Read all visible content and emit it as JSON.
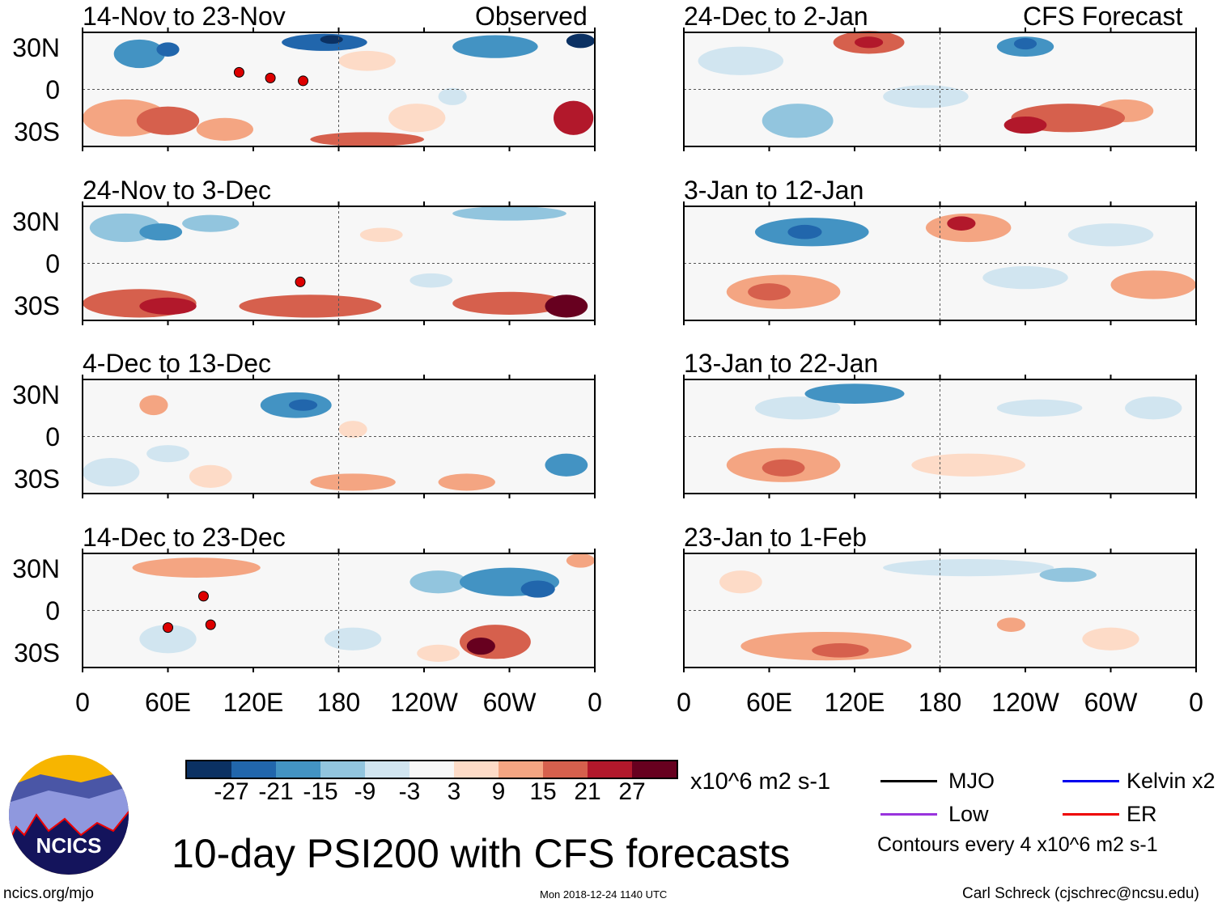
{
  "section_labels": {
    "observed": "Observed",
    "forecast": "CFS Forecast"
  },
  "panels": [
    {
      "title": "14-Nov to 23-Nov",
      "group": "observed",
      "anomalies": [
        [
          40,
          25,
          18,
          10,
          -3
        ],
        [
          60,
          28,
          8,
          5,
          -4
        ],
        [
          170,
          33,
          30,
          6,
          -4
        ],
        [
          175,
          35,
          8,
          3,
          -5
        ],
        [
          290,
          30,
          30,
          8,
          -3
        ],
        [
          350,
          34,
          10,
          5,
          -5
        ],
        [
          30,
          -20,
          30,
          13,
          2
        ],
        [
          60,
          -22,
          22,
          10,
          3
        ],
        [
          345,
          -20,
          14,
          12,
          4
        ],
        [
          100,
          -28,
          20,
          8,
          2
        ],
        [
          200,
          -35,
          40,
          5,
          3
        ],
        [
          235,
          -20,
          20,
          10,
          1
        ],
        [
          200,
          20,
          20,
          7,
          1
        ],
        [
          260,
          -5,
          10,
          6,
          -1
        ]
      ],
      "storms": [
        [
          110,
          12
        ],
        [
          132,
          8
        ],
        [
          155,
          6
        ]
      ]
    },
    {
      "title": "24-Nov to 3-Dec",
      "group": "observed",
      "anomalies": [
        [
          30,
          25,
          25,
          10,
          -2
        ],
        [
          55,
          22,
          15,
          6,
          -3
        ],
        [
          90,
          28,
          20,
          6,
          -2
        ],
        [
          300,
          35,
          40,
          5,
          -2
        ],
        [
          40,
          -28,
          40,
          10,
          3
        ],
        [
          60,
          -30,
          20,
          6,
          4
        ],
        [
          160,
          -30,
          50,
          8,
          3
        ],
        [
          300,
          -28,
          40,
          8,
          3
        ],
        [
          340,
          -30,
          15,
          8,
          5
        ],
        [
          210,
          20,
          15,
          5,
          1
        ],
        [
          245,
          -12,
          15,
          5,
          -1
        ]
      ],
      "storms": [
        [
          153,
          -13
        ]
      ]
    },
    {
      "title": "4-Dec to 13-Dec",
      "group": "observed",
      "anomalies": [
        [
          150,
          22,
          25,
          9,
          -3
        ],
        [
          155,
          22,
          10,
          4,
          -4
        ],
        [
          50,
          22,
          10,
          7,
          2
        ],
        [
          340,
          -20,
          15,
          8,
          -3
        ],
        [
          20,
          -25,
          20,
          10,
          -1
        ],
        [
          190,
          5,
          10,
          6,
          1
        ],
        [
          190,
          -32,
          30,
          6,
          2
        ],
        [
          270,
          -32,
          20,
          6,
          2
        ],
        [
          60,
          -12,
          15,
          6,
          -1
        ],
        [
          90,
          -28,
          15,
          8,
          1
        ]
      ],
      "storms": []
    },
    {
      "title": "14-Dec to 23-Dec",
      "group": "observed",
      "anomalies": [
        [
          80,
          30,
          45,
          7,
          2
        ],
        [
          300,
          20,
          35,
          10,
          -3
        ],
        [
          320,
          15,
          12,
          6,
          -4
        ],
        [
          250,
          20,
          20,
          8,
          -2
        ],
        [
          290,
          -22,
          25,
          12,
          3
        ],
        [
          280,
          -25,
          10,
          6,
          5
        ],
        [
          60,
          -20,
          20,
          10,
          -1
        ],
        [
          190,
          -20,
          20,
          8,
          -1
        ],
        [
          350,
          35,
          10,
          5,
          2
        ],
        [
          250,
          -30,
          15,
          6,
          1
        ]
      ],
      "storms": [
        [
          85,
          10
        ],
        [
          60,
          -12
        ],
        [
          90,
          -10
        ]
      ]
    },
    {
      "title": "24-Dec to 2-Jan",
      "group": "forecast",
      "anomalies": [
        [
          130,
          33,
          25,
          8,
          3
        ],
        [
          130,
          33,
          10,
          4,
          4
        ],
        [
          240,
          30,
          20,
          7,
          -3
        ],
        [
          240,
          32,
          8,
          4,
          -4
        ],
        [
          40,
          20,
          30,
          10,
          -1
        ],
        [
          270,
          -20,
          40,
          10,
          3
        ],
        [
          240,
          -25,
          15,
          6,
          4
        ],
        [
          80,
          -22,
          25,
          12,
          -2
        ],
        [
          170,
          -5,
          30,
          8,
          -1
        ],
        [
          310,
          -15,
          20,
          8,
          2
        ]
      ],
      "storms": []
    },
    {
      "title": "3-Jan to 12-Jan",
      "group": "forecast",
      "anomalies": [
        [
          90,
          22,
          40,
          10,
          -3
        ],
        [
          85,
          22,
          12,
          5,
          -4
        ],
        [
          200,
          25,
          30,
          10,
          2
        ],
        [
          195,
          28,
          10,
          5,
          4
        ],
        [
          70,
          -20,
          40,
          12,
          2
        ],
        [
          60,
          -20,
          15,
          6,
          3
        ],
        [
          330,
          -15,
          30,
          10,
          2
        ],
        [
          300,
          20,
          30,
          8,
          -1
        ],
        [
          240,
          -10,
          30,
          8,
          -1
        ]
      ],
      "storms": []
    },
    {
      "title": "13-Jan to 22-Jan",
      "group": "forecast",
      "anomalies": [
        [
          120,
          30,
          35,
          7,
          -3
        ],
        [
          80,
          20,
          30,
          8,
          -1
        ],
        [
          70,
          -20,
          40,
          12,
          2
        ],
        [
          70,
          -22,
          15,
          6,
          3
        ],
        [
          200,
          -20,
          40,
          8,
          1
        ],
        [
          250,
          20,
          30,
          6,
          -1
        ],
        [
          330,
          20,
          20,
          8,
          -1
        ]
      ],
      "storms": []
    },
    {
      "title": "23-Jan to 1-Feb",
      "group": "forecast",
      "anomalies": [
        [
          100,
          -25,
          60,
          10,
          2
        ],
        [
          110,
          -28,
          20,
          5,
          3
        ],
        [
          230,
          -10,
          10,
          5,
          2
        ],
        [
          300,
          -20,
          20,
          8,
          1
        ],
        [
          200,
          30,
          60,
          6,
          -1
        ],
        [
          270,
          25,
          20,
          5,
          -2
        ],
        [
          40,
          20,
          15,
          8,
          1
        ]
      ],
      "storms": []
    }
  ],
  "lat_labels": [
    "30N",
    "0",
    "30S"
  ],
  "lon_labels": [
    "0",
    "60E",
    "120E",
    "180",
    "120W",
    "60W",
    "0"
  ],
  "colorbar": {
    "colors": [
      "#0b3163",
      "#2166ac",
      "#4393c3",
      "#92c5de",
      "#d1e5f0",
      "#f7f7f7",
      "#fddbc7",
      "#f4a582",
      "#d6604d",
      "#b2182b",
      "#67001f"
    ],
    "labels": [
      "-27",
      "-21",
      "-15",
      "-9",
      "-3",
      "3",
      "9",
      "15",
      "21",
      "27"
    ],
    "units": "x10^6 m2 s-1"
  },
  "legend": {
    "items": [
      {
        "label": "MJO",
        "color": "#000000"
      },
      {
        "label": "Kelvin x2",
        "color": "#0000ee"
      },
      {
        "label": "Low",
        "color": "#9933dd"
      },
      {
        "label": "ER",
        "color": "#ee0000"
      }
    ],
    "contours": "Contours every 4 x10^6 m2 s-1"
  },
  "logo_text": "NCICS",
  "title": "10-day PSI200 with CFS forecasts",
  "footer": {
    "url": "ncics.org/mjo",
    "timestamp": "Mon 2018-12-24 1140 UTC",
    "author": "Carl Schreck (cjschrec@ncsu.edu)"
  }
}
